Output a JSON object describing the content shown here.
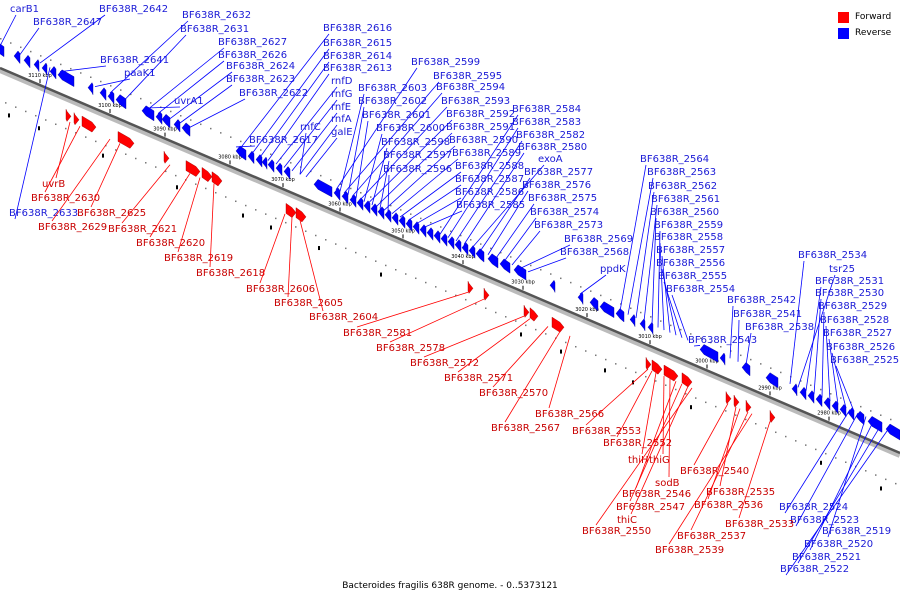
{
  "caption": "Bacteroides fragilis 638R genome. - 0..5373121",
  "legend": [
    {
      "label": "Forward",
      "color": "#ff0000"
    },
    {
      "label": "Reverse",
      "color": "#0000ff"
    }
  ],
  "colors": {
    "forward": "#ff0000",
    "reverse": "#0000ff",
    "forward_label": "#c80000",
    "reverse_label": "#1a1ad6"
  },
  "ticks": [
    "3110 kbp",
    "3100 kbp",
    "3090 kbp",
    "3080 kbp",
    "3070 kbp",
    "3060 kbp",
    "3050 kbp",
    "3040 kbp",
    "3030 kbp",
    "3020 kbp",
    "3010 kbp",
    "3000 kbp",
    "2990 kbp",
    "2980 kbp"
  ],
  "reverse_labels": [
    "carB1",
    "BF638R_2647",
    "BF638R_2642",
    "BF638R_2641",
    "paaK1",
    "BF638R_2632",
    "BF638R_2631",
    "BF638R_2627",
    "BF638R_2626",
    "BF638R_2624",
    "BF638R_2623",
    "BF638R_2622",
    "uvrA1",
    "BF638R_2616",
    "BF638R_2615",
    "BF638R_2614",
    "BF638R_2613",
    "rnfD",
    "rnfG",
    "rnfE",
    "rnfA",
    "rnfC",
    "galE",
    "BF638R_2617",
    "BF638R_2599",
    "BF638R_2595",
    "BF638R_2603",
    "BF638R_2594",
    "BF638R_2602",
    "BF638R_2593",
    "BF638R_2601",
    "BF638R_2592",
    "BF638R_2600",
    "BF638R_2591",
    "BF638R_2598",
    "BF638R_2590",
    "BF638R_2597",
    "BF638R_2589",
    "BF638R_2596",
    "BF638R_2588",
    "BF638R_2587",
    "BF638R_2586",
    "BF638R_2585",
    "BF638R_2584",
    "BF638R_2583",
    "BF638R_2582",
    "BF638R_2580",
    "exoA",
    "BF638R_2577",
    "BF638R_2576",
    "BF638R_2575",
    "BF638R_2574",
    "BF638R_2573",
    "BF638R_2569",
    "BF638R_2568",
    "BF638R_2564",
    "BF638R_2563",
    "BF638R_2562",
    "BF638R_2561",
    "BF638R_2560",
    "BF638R_2559",
    "BF638R_2558",
    "BF638R_2557",
    "BF638R_2556",
    "BF638R_2555",
    "BF638R_2554",
    "ppdK",
    "BF638R_2542",
    "BF638R_2541",
    "BF638R_2538",
    "BF638R_2543",
    "BF638R_2534",
    "tsr25",
    "BF638R_2531",
    "BF638R_2530",
    "BF638R_2529",
    "BF638R_2528",
    "BF638R_2527",
    "BF638R_2526",
    "BF638R_2525",
    "BF638R_2524",
    "BF638R_2523",
    "BF638R_2519",
    "BF638R_2520",
    "BF638R_2521",
    "BF638R_2522",
    "BF638R_2633"
  ],
  "forward_labels": [
    "uvrB",
    "BF638R_2630",
    "BF638R_2625",
    "BF638R_2629",
    "BF638R_2621",
    "BF638R_2620",
    "BF638R_2619",
    "BF638R_2618",
    "BF638R_2606",
    "BF638R_2605",
    "BF638R_2604",
    "BF638R_2581",
    "BF638R_2578",
    "BF638R_2572",
    "BF638R_2571",
    "BF638R_2570",
    "BF638R_2566",
    "BF638R_2567",
    "BF638R_2553",
    "BF638R_2552",
    "thiH",
    "thiG",
    "sodB",
    "BF638R_2546",
    "BF638R_2547",
    "thiC",
    "BF638R_2550",
    "BF638R_2540",
    "BF638R_2535",
    "BF638R_2536",
    "BF638R_2533",
    "BF638R_2537",
    "BF638R_2539"
  ]
}
